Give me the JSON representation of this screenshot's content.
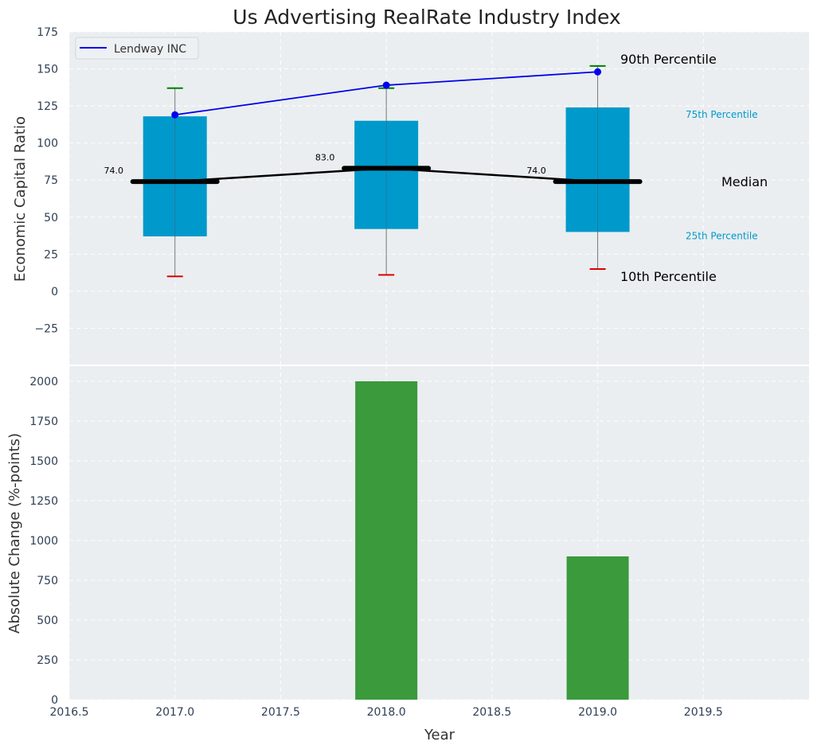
{
  "chart_data": [
    {
      "type": "box",
      "title": "Us Advertising RealRate Industry Index",
      "ylabel": "Economic Capital Ratio",
      "ylim": [
        -50,
        175
      ],
      "yticks": [
        -25,
        0,
        25,
        50,
        75,
        100,
        125,
        150,
        175
      ],
      "ytick_labels": [
        "−25",
        "0",
        "25",
        "50",
        "75",
        "100",
        "125",
        "150",
        "175"
      ],
      "xlim": [
        2016.5,
        2020.0
      ],
      "grid": true,
      "legend": {
        "location": "top-left",
        "entries": [
          "Lendway INC"
        ]
      },
      "x": [
        2017.0,
        2018.0,
        2019.0
      ],
      "percentiles": {
        "p10": [
          10,
          11,
          15
        ],
        "p25": [
          37,
          42,
          40
        ],
        "median": [
          74,
          83,
          74
        ],
        "p75": [
          118,
          115,
          124
        ],
        "p90": [
          137,
          137,
          152
        ]
      },
      "median_labels": [
        "74.0",
        "83.0",
        "74.0"
      ],
      "series": [
        {
          "name": "Lendway INC",
          "color": "#0000ee",
          "values": [
            119,
            139,
            148
          ]
        }
      ],
      "annotations": {
        "p90": "90th Percentile",
        "p75": "75th Percentile",
        "median": "Median",
        "p25": "25th Percentile",
        "p10": "10th Percentile"
      },
      "colors": {
        "box": "#0099cc",
        "median": "#000000",
        "p90_cap": "#008000",
        "p10_cap": "#dd0000"
      }
    },
    {
      "type": "bar",
      "ylabel": "Absolute Change (%-points)",
      "xlabel": "Year",
      "ylim": [
        0,
        2100
      ],
      "yticks": [
        0,
        250,
        500,
        750,
        1000,
        1250,
        1500,
        1750,
        2000
      ],
      "xlim": [
        2016.5,
        2020.0
      ],
      "xticks": [
        2016.5,
        2017.0,
        2017.5,
        2018.0,
        2018.5,
        2019.0,
        2019.5
      ],
      "xtick_labels": [
        "2016.5",
        "2017.0",
        "2017.5",
        "2018.0",
        "2018.5",
        "2019.0",
        "2019.5"
      ],
      "grid": true,
      "x": [
        2018.0,
        2019.0
      ],
      "values": [
        2000,
        900
      ],
      "colors": {
        "bar": "#3a9a3c"
      }
    }
  ]
}
